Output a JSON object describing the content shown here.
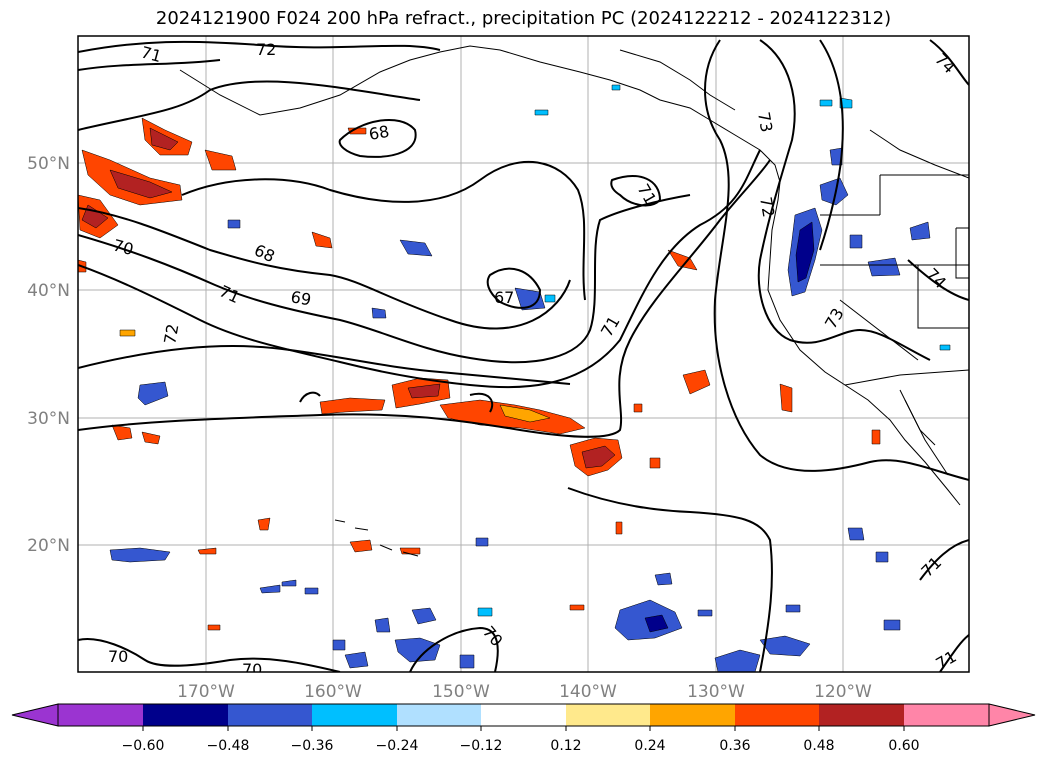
{
  "title": "2024121900 F024 200 hPa refract., precipitation PC (2024122212 - 2024122312)",
  "map": {
    "lon_ticks": [
      "170°W",
      "160°W",
      "150°W",
      "140°W",
      "130°W",
      "120°W"
    ],
    "lat_ticks": [
      "50°N",
      "40°N",
      "30°N",
      "20°N"
    ],
    "contour_labels": [
      "71",
      "72",
      "74",
      "68",
      "73",
      "71",
      "72",
      "70",
      "68",
      "71",
      "69",
      "67",
      "71",
      "73",
      "74",
      "72",
      "70",
      "70",
      "70",
      "71",
      "71"
    ]
  },
  "colorbar": {
    "colors": [
      "#9b34d1",
      "#00008b",
      "#3557d0",
      "#00bfff",
      "#b0e0ff",
      "#ffffff",
      "#ffe98c",
      "#ffa500",
      "#ff4500",
      "#b22222",
      "#ff85a8"
    ],
    "tick_labels": [
      "−0.60",
      "−0.48",
      "−0.36",
      "−0.24",
      "−0.12",
      "0.12",
      "0.24",
      "0.36",
      "0.48",
      "0.60"
    ]
  }
}
